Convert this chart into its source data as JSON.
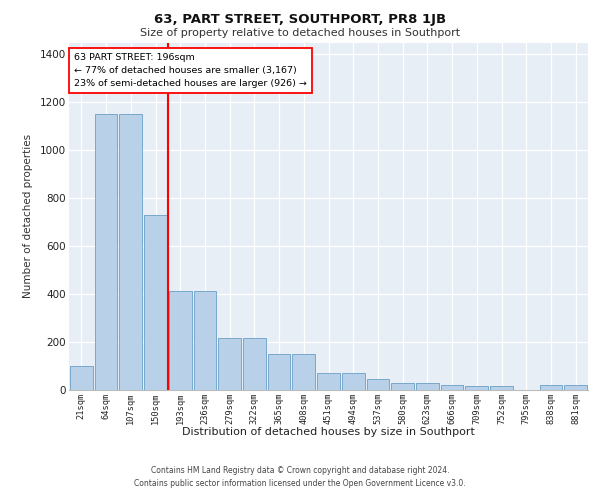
{
  "title": "63, PART STREET, SOUTHPORT, PR8 1JB",
  "subtitle": "Size of property relative to detached houses in Southport",
  "xlabel": "Distribution of detached houses by size in Southport",
  "ylabel": "Number of detached properties",
  "categories": [
    "21sqm",
    "64sqm",
    "107sqm",
    "150sqm",
    "193sqm",
    "236sqm",
    "279sqm",
    "322sqm",
    "365sqm",
    "408sqm",
    "451sqm",
    "494sqm",
    "537sqm",
    "580sqm",
    "623sqm",
    "666sqm",
    "709sqm",
    "752sqm",
    "795sqm",
    "838sqm",
    "881sqm"
  ],
  "bar_values": [
    100,
    1150,
    1150,
    730,
    415,
    415,
    215,
    215,
    150,
    150,
    70,
    70,
    45,
    30,
    30,
    20,
    15,
    15,
    0,
    20,
    20
  ],
  "bar_color": "#b8d0e8",
  "bar_edge_color": "#6a9fc8",
  "vline_position": 3.5,
  "vline_color": "red",
  "annotation_text": "63 PART STREET: 196sqm\n← 77% of detached houses are smaller (3,167)\n23% of semi-detached houses are larger (926) →",
  "annotation_box_color": "white",
  "annotation_box_edge": "red",
  "ylim": [
    0,
    1450
  ],
  "yticks": [
    0,
    200,
    400,
    600,
    800,
    1000,
    1200,
    1400
  ],
  "bg_color": "#e8eef6",
  "footer_line1": "Contains HM Land Registry data © Crown copyright and database right 2024.",
  "footer_line2": "Contains public sector information licensed under the Open Government Licence v3.0."
}
